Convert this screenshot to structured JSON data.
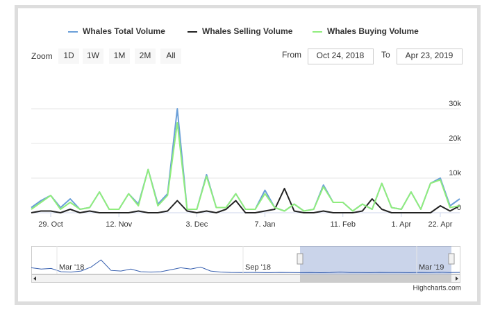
{
  "chart_data": {
    "type": "line",
    "series": [
      {
        "name": "Whales Total Volume",
        "color": "#6a9fd8",
        "values": [
          1500,
          3500,
          5000,
          1500,
          4000,
          1000,
          1500,
          6000,
          1000,
          1000,
          5500,
          2500,
          12500,
          2500,
          5500,
          30000,
          1000,
          1000,
          11000,
          1500,
          1500,
          5500,
          1000,
          1000,
          6500,
          1500,
          500,
          2500,
          500,
          1000,
          8000,
          3000,
          3000,
          500,
          2500,
          1000,
          8500,
          1500,
          1000,
          6000,
          1000,
          8500,
          10000,
          2000,
          4000
        ]
      },
      {
        "name": "Whales Selling Volume",
        "color": "#222222",
        "values": [
          0,
          500,
          500,
          0,
          1000,
          0,
          500,
          0,
          0,
          0,
          0,
          500,
          0,
          0,
          500,
          3500,
          500,
          0,
          500,
          0,
          1000,
          3500,
          0,
          0,
          500,
          1000,
          7000,
          500,
          0,
          0,
          500,
          0,
          0,
          0,
          500,
          4000,
          1000,
          0,
          0,
          0,
          0,
          0,
          2000,
          500,
          2000
        ]
      },
      {
        "name": "Whales Buying Volume",
        "color": "#90ed7d",
        "values": [
          1000,
          3000,
          5000,
          1000,
          3000,
          1000,
          1500,
          6000,
          1000,
          1000,
          5500,
          2000,
          12500,
          2000,
          5000,
          26000,
          1000,
          1000,
          10500,
          1500,
          1500,
          5500,
          1000,
          1000,
          5500,
          1500,
          500,
          2500,
          500,
          1000,
          7500,
          3000,
          3000,
          500,
          2500,
          1000,
          8500,
          1500,
          1000,
          6000,
          1000,
          8500,
          9500,
          1500,
          2000
        ]
      }
    ],
    "categories": [
      null,
      null,
      "29. Oct",
      null,
      null,
      null,
      null,
      null,
      null,
      "12. Nov",
      null,
      null,
      null,
      null,
      null,
      null,
      null,
      "3. Dec",
      null,
      null,
      null,
      null,
      null,
      null,
      "7. Jan",
      null,
      null,
      null,
      null,
      null,
      null,
      null,
      "11. Feb",
      null,
      null,
      null,
      null,
      null,
      "1. Apr",
      null,
      null,
      null,
      "22. Apr",
      null,
      null
    ],
    "ylim": [
      0,
      30000
    ],
    "yticks": [
      0,
      {
        "value": 10000,
        "label": "10k"
      },
      {
        "value": 20000,
        "label": "20k"
      },
      {
        "value": 30000,
        "label": "30k"
      }
    ],
    "grid": true,
    "legend": "top",
    "range_selector": {
      "label": "Zoom",
      "buttons": [
        "1D",
        "1W",
        "1M",
        "2M",
        "All"
      ],
      "from_label": "From",
      "from": "Oct 24, 2018",
      "to_label": "To",
      "to": "Apr 23, 2019"
    },
    "navigator": {
      "labels": [
        "Mar '18",
        "Sep '18",
        "Mar '19"
      ],
      "ylim": [
        0,
        40000
      ],
      "color": "#335cad",
      "values": [
        8000,
        6000,
        7000,
        2000,
        1500,
        3000,
        9000,
        20000,
        4000,
        3000,
        6000,
        2000,
        1500,
        2000,
        5000,
        8000,
        6000,
        9000,
        3000,
        1500,
        1000,
        800,
        1000,
        700,
        600,
        900,
        700,
        600,
        800,
        500,
        700,
        1500,
        800,
        700,
        600,
        900,
        700,
        800,
        600,
        900,
        700,
        1200,
        800,
        900
      ]
    },
    "credits": "Highcharts.com"
  }
}
